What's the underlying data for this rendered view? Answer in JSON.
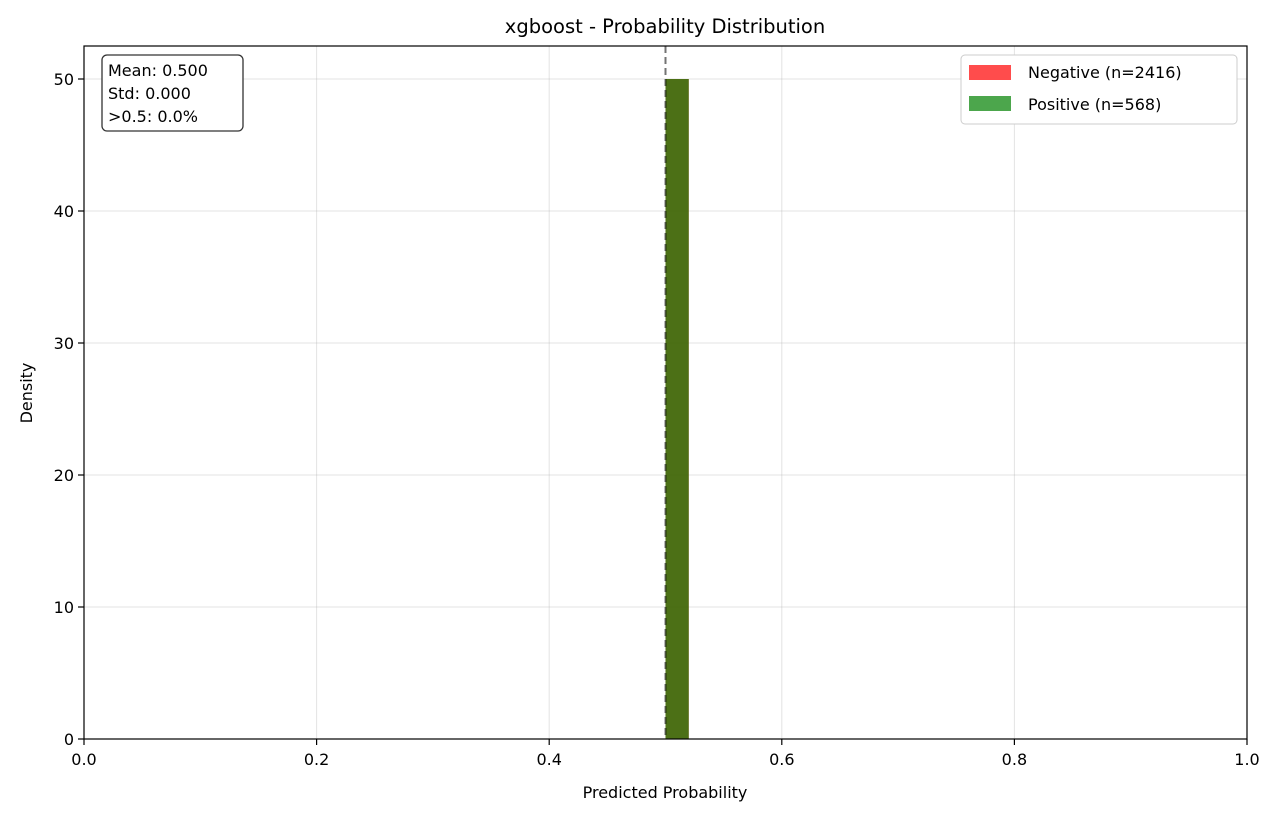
{
  "chart_data": {
    "type": "bar",
    "title": "xgboost - Probability Distribution",
    "xlabel": "Predicted Probability",
    "ylabel": "Density",
    "xlim": [
      0.0,
      1.0
    ],
    "ylim": [
      0,
      52.5
    ],
    "xticks": [
      "0.0",
      "0.2",
      "0.4",
      "0.6",
      "0.8",
      "1.0"
    ],
    "xtick_values": [
      0.0,
      0.2,
      0.4,
      0.6,
      0.8,
      1.0
    ],
    "yticks": [
      "0",
      "10",
      "20",
      "30",
      "40",
      "50"
    ],
    "ytick_values": [
      0,
      10,
      20,
      30,
      40,
      50
    ],
    "grid": true,
    "legend_position": "top-right",
    "threshold": 0.5,
    "series": [
      {
        "name": "Negative (n=2416)",
        "color": "#ff4c4c",
        "bins": [
          {
            "x0": 0.5,
            "x1": 0.52,
            "density": 50
          }
        ]
      },
      {
        "name": "Positive (n=568)",
        "color": "#4ca64c",
        "bins": [
          {
            "x0": 0.5,
            "x1": 0.52,
            "density": 50
          }
        ]
      }
    ],
    "overlap_color": "#4a7016",
    "stats_box": [
      "Mean: 0.500",
      "Std: 0.000",
      ">0.5: 0.0%"
    ]
  }
}
